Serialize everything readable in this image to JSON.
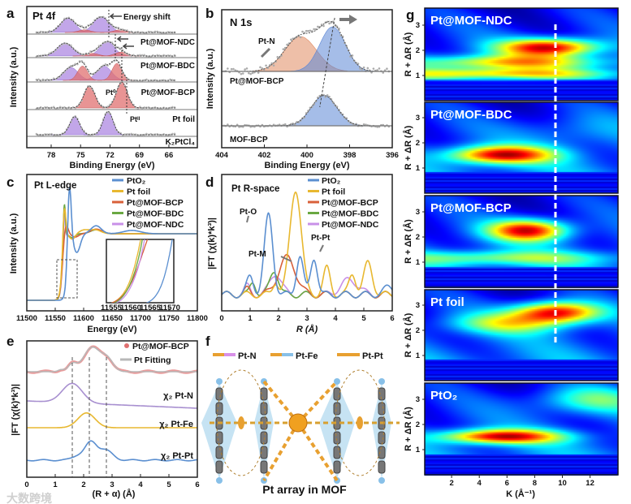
{
  "figure": {
    "panel_letters": [
      "a",
      "b",
      "c",
      "d",
      "e",
      "f",
      "g"
    ],
    "watermark": "大数跨境"
  },
  "chart_data": [
    {
      "panel": "a",
      "type": "line",
      "title": "Pt 4f",
      "annotation": "Energy shift",
      "xlabel": "Binding Energy (eV)",
      "ylabel": "Intensity (a.u.)",
      "xlim": [
        80,
        65
      ],
      "xticks": [
        "78",
        "75",
        "72",
        "69",
        "66"
      ],
      "peak_labels": {
        "pt0": "Pt⁰",
        "pt2": "Ptᴵᴵ"
      },
      "colors": {
        "pt2": "#a880e0",
        "pt0": "#e07070"
      },
      "series": [
        {
          "name": "Pt@MOF-NDC",
          "pt2_peaks": [
            [
              76.3,
              0.55,
              0.75
            ],
            [
              72.9,
              0.6,
              0.8
            ]
          ],
          "pt0_peaks": [
            [
              74.6,
              0.1,
              0.6
            ],
            [
              71.0,
              0.1,
              0.6
            ]
          ]
        },
        {
          "name": "Pt@MOF-BDC",
          "pt2_peaks": [
            [
              76.6,
              0.5,
              0.8
            ],
            [
              72.3,
              0.55,
              0.75
            ]
          ],
          "pt0_peaks": [
            [
              73.8,
              0.1,
              0.6
            ],
            [
              70.9,
              0.15,
              0.6
            ]
          ]
        },
        {
          "name": "Pt@MOF-BCP",
          "pt2_peaks": [
            [
              76.0,
              0.5,
              0.75
            ],
            [
              72.6,
              0.55,
              0.75
            ]
          ],
          "pt0_peaks": [
            [
              74.8,
              0.55,
              0.5
            ],
            [
              71.3,
              0.65,
              0.5
            ]
          ]
        },
        {
          "name": "Pt foil",
          "pt2_peaks": [],
          "pt0_peaks": [
            [
              74.1,
              0.85,
              0.55
            ],
            [
              70.8,
              1.0,
              0.55
            ]
          ]
        },
        {
          "name": "K₂PtCl₄",
          "pt2_peaks": [
            [
              75.6,
              0.7,
              0.5
            ],
            [
              72.2,
              0.9,
              0.5
            ]
          ],
          "pt0_peaks": []
        }
      ]
    },
    {
      "panel": "b",
      "type": "line",
      "title": "N 1s",
      "annotation": "Pt-N",
      "xlabel": "Binding Energy (eV)",
      "ylabel": "Intensity (a.u.)",
      "xlim": [
        404,
        396
      ],
      "xticks": [
        "404",
        "402",
        "400",
        "398",
        "396"
      ],
      "series": [
        {
          "name": "Pt@MOF-BCP",
          "peaks": [
            {
              "center": 400.3,
              "height": 0.78,
              "width": 0.75,
              "color": "#e08a60"
            },
            {
              "center": 398.8,
              "height": 1.0,
              "width": 0.6,
              "color": "#5b86d6"
            }
          ]
        },
        {
          "name": "MOF-BCP",
          "peaks": [
            {
              "center": 399.2,
              "height": 0.68,
              "width": 0.6,
              "color": "#5b86d6"
            }
          ]
        }
      ]
    },
    {
      "panel": "c",
      "type": "line",
      "title": "Pt L-edge",
      "xlabel": "Energy (eV)",
      "ylabel": "Intensity (a.u.)",
      "xlim": [
        11500,
        11800
      ],
      "xticks": [
        "11500",
        "11550",
        "11600",
        "11650",
        "11700",
        "11750",
        "11800"
      ],
      "inset": {
        "xlim": [
          11553,
          11571
        ],
        "xticks": [
          "11555",
          "11560",
          "11565",
          "11570"
        ]
      },
      "series": [
        {
          "name": "PtO₂",
          "color": "#5b8fd0",
          "edge": 11571,
          "edge_width": 2.2,
          "peaks": [
            [
              11575,
              0.85,
              3
            ],
            [
              11588,
              -0.28,
              6
            ],
            [
              11622,
              0.12,
              9
            ],
            [
              11685,
              0.05,
              15
            ]
          ]
        },
        {
          "name": "Pt foil",
          "color": "#e8b830",
          "edge": 11562,
          "edge_width": 2.2,
          "peaks": [
            [
              11566,
              0.5,
              2.5
            ],
            [
              11580,
              -0.08,
              5
            ],
            [
              11600,
              0.05,
              8
            ],
            [
              11620,
              0.06,
              10
            ]
          ]
        },
        {
          "name": "Pt@MOF-BCP",
          "color": "#d8603a",
          "edge": 11563,
          "edge_width": 2.5,
          "peaks": [
            [
              11568,
              0.2,
              4
            ],
            [
              11585,
              -0.05,
              6
            ],
            [
              11622,
              0.07,
              10
            ]
          ]
        },
        {
          "name": "Pt@MOF-BDC",
          "color": "#6aa842",
          "edge": 11562,
          "edge_width": 2.0,
          "peaks": [
            [
              11566,
              0.55,
              1.8
            ],
            [
              11580,
              -0.06,
              5
            ],
            [
              11622,
              0.06,
              10
            ]
          ]
        },
        {
          "name": "Pt@MOF-NDC",
          "color": "#c890e8",
          "edge": 11562.5,
          "edge_width": 2.0,
          "peaks": [
            [
              11566,
              0.42,
              1.6
            ],
            [
              11580,
              -0.08,
              5
            ],
            [
              11622,
              0.06,
              10
            ]
          ]
        }
      ]
    },
    {
      "panel": "d",
      "type": "line",
      "title": "Pt R-space",
      "xlabel": "R (Å)",
      "ylabel": "|FT (χ(k)*k³)|",
      "xlim": [
        0,
        6
      ],
      "xticks": [
        "0",
        "1",
        "2",
        "3",
        "4",
        "5",
        "6"
      ],
      "annotations": [
        "Pt-O",
        "Pt-M",
        "Pt-Pt"
      ],
      "series": [
        {
          "name": "PtO₂",
          "color": "#5b8fd0",
          "peaks": [
            [
              1.0,
              0.17,
              0.12
            ],
            [
              1.65,
              0.75,
              0.15
            ],
            [
              2.75,
              0.37,
              0.12
            ],
            [
              3.25,
              0.35,
              0.12
            ],
            [
              5.9,
              0.07,
              0.2
            ]
          ]
        },
        {
          "name": "Pt foil",
          "color": "#e8b830",
          "peaks": [
            [
              2.6,
              1.0,
              0.2
            ],
            [
              1.9,
              0.12,
              0.1
            ],
            [
              3.7,
              0.25,
              0.12
            ],
            [
              4.6,
              0.2,
              0.12
            ],
            [
              5.15,
              0.3,
              0.15
            ]
          ]
        },
        {
          "name": "Pt@MOF-BCP",
          "color": "#d8603a",
          "peaks": [
            [
              2.3,
              0.35,
              0.3
            ],
            [
              0.9,
              0.05,
              0.1
            ]
          ]
        },
        {
          "name": "Pt@MOF-BDC",
          "color": "#6aa842",
          "peaks": [
            [
              1.85,
              0.23,
              0.15
            ],
            [
              1.1,
              0.12,
              0.1
            ]
          ]
        },
        {
          "name": "Pt@MOF-NDC",
          "color": "#c890e8",
          "peaks": [
            [
              1.9,
              0.2,
              0.2
            ],
            [
              4.5,
              0.14,
              0.3
            ],
            [
              0.9,
              0.08,
              0.1
            ]
          ]
        }
      ]
    },
    {
      "panel": "e",
      "type": "line",
      "xlabel": "(R + α) (Å)",
      "ylabel": "|FT (χ(k)*k³)|",
      "xlim": [
        0,
        6
      ],
      "xticks": [
        "0",
        "1",
        "2",
        "3",
        "4",
        "5",
        "6"
      ],
      "marker_positions": [
        1.6,
        2.2,
        2.8
      ],
      "legend": [
        {
          "name": "Pt@MOF-BCP",
          "color": "#e07070"
        },
        {
          "name": "Pt Fitting",
          "color": "#b8b8b8"
        }
      ],
      "series": [
        {
          "name": "Pt@MOF-BCP",
          "color": "#e07070",
          "peaks": [
            [
              1.6,
              0.3,
              0.15
            ],
            [
              2.3,
              1.0,
              0.3
            ],
            [
              2.85,
              0.45,
              0.2
            ],
            [
              1.2,
              0.08,
              0.1
            ]
          ]
        },
        {
          "name": "χ₂ Pt-N",
          "color": "#a890d0",
          "peaks": [
            [
              1.6,
              0.8,
              0.35
            ]
          ]
        },
        {
          "name": "χ₂ Pt-Fe",
          "color": "#e8b830",
          "peaks": [
            [
              2.1,
              0.65,
              0.3
            ]
          ]
        },
        {
          "name": "χ₂ Pt-Pt",
          "color": "#5b8fd0",
          "peaks": [
            [
              2.25,
              0.75,
              0.2
            ],
            [
              2.75,
              0.45,
              0.25
            ],
            [
              1.8,
              0.2,
              0.2
            ]
          ]
        }
      ]
    },
    {
      "panel": "f",
      "type": "diagram",
      "title": "Pt array in MOF",
      "legend": [
        {
          "name": "Pt-N",
          "colors": [
            "#e8a030",
            "#d890e8"
          ]
        },
        {
          "name": "Pt-Fe",
          "colors": [
            "#e8a030",
            "#88c0e8"
          ]
        },
        {
          "name": "Pt-Pt",
          "colors": [
            "#e8a030",
            "#e8a030"
          ]
        }
      ]
    },
    {
      "panel": "g",
      "type": "heatmap",
      "xlabel": "K (Å⁻¹)",
      "ylabel": "R + ΔR (Å)",
      "xlim": [
        0,
        14
      ],
      "ylim": [
        0,
        3.6
      ],
      "xticks": [
        "2",
        "4",
        "6",
        "8",
        "10",
        "12"
      ],
      "yticks": [
        "1",
        "2",
        "3"
      ],
      "marker_k": 9.5,
      "maps": [
        {
          "name": "Pt@MOF-NDC",
          "blobs": [
            [
              9,
              2.15,
              2.5,
              0.25,
              0.75
            ],
            [
              6,
              1.55,
              5,
              0.2,
              0.45
            ],
            [
              5,
              1.1,
              6,
              0.15,
              0.42
            ]
          ]
        },
        {
          "name": "Pt@MOF-BDC",
          "blobs": [
            [
              5.5,
              1.55,
              2.6,
              0.25,
              0.72
            ],
            [
              11,
              2.5,
              3,
              0.5,
              0.12
            ]
          ]
        },
        {
          "name": "Pt@MOF-BCP",
          "blobs": [
            [
              7.5,
              2.3,
              2,
              0.3,
              0.72
            ],
            [
              5,
              1.2,
              6,
              0.2,
              0.3
            ]
          ]
        },
        {
          "name": "Pt foil",
          "blobs": [
            [
              9.5,
              2.75,
              2.2,
              0.3,
              0.75
            ],
            [
              6,
              2.3,
              3,
              0.3,
              0.35
            ]
          ]
        },
        {
          "name": "PtO₂",
          "blobs": [
            [
              5.5,
              1.55,
              3,
              0.2,
              0.72
            ],
            [
              12,
              3,
              3,
              0.4,
              0.3
            ]
          ]
        }
      ]
    }
  ]
}
